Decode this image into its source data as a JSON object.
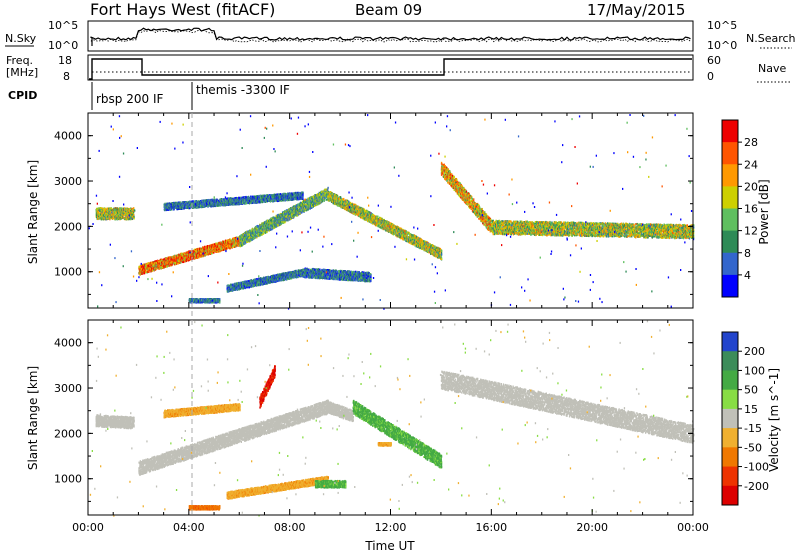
{
  "header": {
    "station": "Fort Hays West (fitACF)",
    "beam": "Beam 09",
    "date": "17/May/2015"
  },
  "top_panel": {
    "left_label": "N.Sky",
    "right_label": "N.Search",
    "left_ticks": [
      "10^5",
      "10^0"
    ],
    "right_ticks": [
      "10^5",
      "10^0"
    ]
  },
  "freq_panel": {
    "left_label_line1": "Freq.",
    "left_label_line2": "[MHz]",
    "right_label": "Nave",
    "left_ticks": [
      "18",
      "8"
    ],
    "right_ticks": [
      "60",
      "0"
    ]
  },
  "cpid": {
    "label": "CPID",
    "programs": [
      "rbsp 200 IF",
      "themis -3300 IF"
    ]
  },
  "chart_data": [
    {
      "type": "heatmap",
      "quantity": "power",
      "ylabel": "Slant Range [km]",
      "ylim": [
        200,
        4500
      ],
      "yticks": [
        "1000",
        "2000",
        "3000",
        "4000"
      ],
      "colorbar_label": "Power [dB]",
      "colorbar_ticks": [
        "4",
        "8",
        "12",
        "16",
        "20",
        "24",
        "28"
      ],
      "colorbar_range": [
        0,
        32
      ],
      "colors": [
        "#0000ff",
        "#3366cc",
        "#2e8b57",
        "#5fbf5f",
        "#cdd000",
        "#ff9900",
        "#ff5500",
        "#ee0000"
      ],
      "scatter_bands": [
        {
          "t_start": 0.3,
          "t_end": 1.8,
          "range_start": 2300,
          "range_end": 2300,
          "width": 250,
          "level": 16
        },
        {
          "t_start": 2.0,
          "t_end": 6.0,
          "range_start": 1050,
          "range_end": 1700,
          "width": 200,
          "level": 24
        },
        {
          "t_start": 6.0,
          "t_end": 9.5,
          "range_start": 1700,
          "range_end": 2750,
          "width": 250,
          "level": 12
        },
        {
          "t_start": 9.5,
          "t_end": 14.0,
          "range_start": 2700,
          "range_end": 1400,
          "width": 220,
          "level": 16
        },
        {
          "t_start": 14.0,
          "t_end": 16.0,
          "range_start": 3300,
          "range_end": 2000,
          "width": 300,
          "level": 20
        },
        {
          "t_start": 16.0,
          "t_end": 24.0,
          "range_start": 2000,
          "range_end": 1900,
          "width": 300,
          "level": 16
        },
        {
          "t_start": 3.0,
          "t_end": 8.5,
          "range_start": 2450,
          "range_end": 2700,
          "width": 150,
          "level": 8
        },
        {
          "t_start": 5.5,
          "t_end": 8.5,
          "range_start": 650,
          "range_end": 1000,
          "width": 150,
          "level": 8
        },
        {
          "t_start": 8.5,
          "t_end": 11.2,
          "range_start": 1000,
          "range_end": 900,
          "width": 200,
          "level": 8
        },
        {
          "t_start": 4.0,
          "t_end": 5.2,
          "range_start": 380,
          "range_end": 380,
          "width": 80,
          "level": 8
        }
      ]
    },
    {
      "type": "heatmap",
      "quantity": "velocity",
      "ylabel": "Slant Range [km]",
      "ylim": [
        200,
        4500
      ],
      "yticks": [
        "1000",
        "2000",
        "3000",
        "4000"
      ],
      "colorbar_label": "Velocity [m s^-1]",
      "colorbar_ticks": [
        "200",
        "100",
        "50",
        "15",
        "-15",
        "-50",
        "-100",
        "-200"
      ],
      "colors": [
        "#2244cc",
        "#3c8c5a",
        "#44aa44",
        "#88dd44",
        "#c0c0b8",
        "#f0b030",
        "#f07800",
        "#ee3300",
        "#dd0000"
      ],
      "scatter_bands": [
        {
          "t_start": 0.3,
          "t_end": 1.8,
          "range_start": 2300,
          "range_end": 2250,
          "width": 250,
          "level": -5
        },
        {
          "t_start": 2.0,
          "t_end": 9.5,
          "range_start": 1250,
          "range_end": 2600,
          "width": 300,
          "level": 0
        },
        {
          "t_start": 9.5,
          "t_end": 10.5,
          "range_start": 2600,
          "range_end": 2400,
          "width": 250,
          "level": 0
        },
        {
          "t_start": 10.5,
          "t_end": 14.0,
          "range_start": 2600,
          "range_end": 1400,
          "width": 300,
          "level": 40
        },
        {
          "t_start": 14.0,
          "t_end": 24.0,
          "range_start": 3200,
          "range_end": 2000,
          "width": 400,
          "level": 0
        },
        {
          "t_start": 3.0,
          "t_end": 6.0,
          "range_start": 2450,
          "range_end": 2600,
          "width": 150,
          "level": -40
        },
        {
          "t_start": 6.8,
          "t_end": 7.4,
          "range_start": 2700,
          "range_end": 3400,
          "width": 250,
          "level": -210
        },
        {
          "t_start": 5.5,
          "t_end": 9.5,
          "range_start": 650,
          "range_end": 1000,
          "width": 150,
          "level": -40
        },
        {
          "t_start": 9.0,
          "t_end": 10.2,
          "range_start": 900,
          "range_end": 900,
          "width": 150,
          "level": 40
        },
        {
          "t_start": 4.0,
          "t_end": 5.2,
          "range_start": 380,
          "range_end": 380,
          "width": 80,
          "level": -80
        },
        {
          "t_start": 11.5,
          "t_end": 12.0,
          "range_start": 1780,
          "range_end": 1780,
          "width": 60,
          "level": -40
        }
      ]
    }
  ],
  "xaxis": {
    "label": "Time UT",
    "tick_labels": [
      "00:00",
      "04:00",
      "08:00",
      "12:00",
      "16:00",
      "20:00",
      "00:00"
    ],
    "range_hours": [
      0,
      24
    ]
  }
}
